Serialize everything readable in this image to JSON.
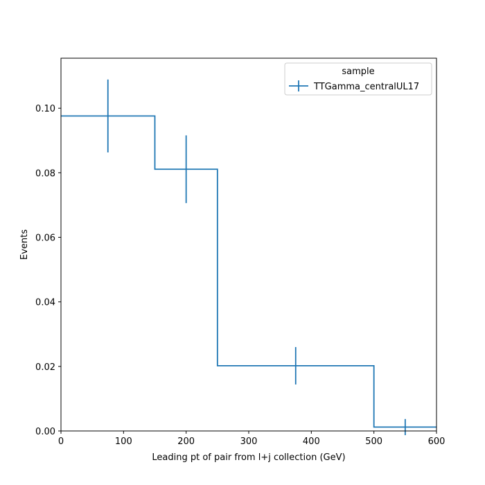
{
  "chart_data": {
    "type": "line",
    "style": "step-histogram-with-errorbars",
    "xlabel": "Leading pt of pair from l+j collection (GeV)",
    "ylabel": "Events",
    "xlim": [
      0,
      600
    ],
    "ylim": [
      0,
      0.1155
    ],
    "xticks": [
      0,
      100,
      200,
      300,
      400,
      500,
      600
    ],
    "yticks": [
      0.0,
      0.02,
      0.04,
      0.06,
      0.08,
      0.1
    ],
    "ytick_labels": [
      "0.00",
      "0.02",
      "0.04",
      "0.06",
      "0.08",
      "0.10"
    ],
    "bin_edges": [
      0,
      150,
      250,
      500,
      600
    ],
    "grid": false,
    "legend": {
      "title": "sample",
      "placement": "top-right"
    },
    "series": [
      {
        "name": "TTGamma_centralUL17",
        "color": "#1f77b4",
        "x": [
          75,
          200,
          375,
          550
        ],
        "values": [
          0.0976,
          0.0811,
          0.0202,
          0.0012
        ],
        "errors": [
          0.0113,
          0.0105,
          0.0058,
          0.0025
        ]
      }
    ]
  }
}
